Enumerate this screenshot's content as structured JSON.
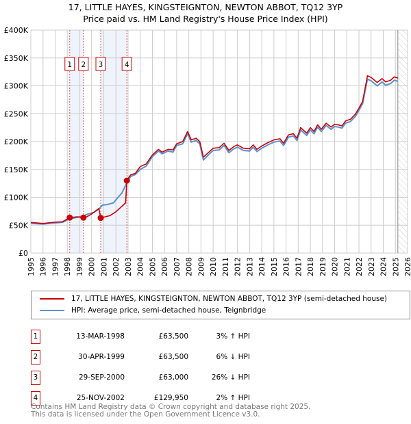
{
  "chart_data": {
    "type": "line",
    "title": "17, LITTLE HAYES, KINGSTEIGNTON, NEWTON ABBOT, TQ12 3YP",
    "subtitle": "Price paid vs. HM Land Registry's House Price Index (HPI)",
    "xlim": [
      1995,
      2026
    ],
    "ylim": [
      0,
      400000
    ],
    "x_ticks": [
      "1995",
      "1996",
      "1997",
      "1998",
      "1999",
      "2000",
      "2001",
      "2002",
      "2003",
      "2004",
      "2005",
      "2006",
      "2007",
      "2008",
      "2009",
      "2010",
      "2011",
      "2012",
      "2013",
      "2014",
      "2015",
      "2016",
      "2017",
      "2018",
      "2019",
      "2020",
      "2021",
      "2022",
      "2023",
      "2024",
      "2025",
      "2026"
    ],
    "y_ticks": [
      {
        "v": 0,
        "l": "£0"
      },
      {
        "v": 50000,
        "l": "£50K"
      },
      {
        "v": 100000,
        "l": "£100K"
      },
      {
        "v": 150000,
        "l": "£150K"
      },
      {
        "v": 200000,
        "l": "£200K"
      },
      {
        "v": 250000,
        "l": "£250K"
      },
      {
        "v": 300000,
        "l": "£300K"
      },
      {
        "v": 350000,
        "l": "£350K"
      },
      {
        "v": 400000,
        "l": "£400K"
      }
    ],
    "grid": true,
    "series": [
      {
        "name": "17, LITTLE HAYES, KINGSTEIGNTON, NEWTON ABBOT, TQ12 3YP (semi-detached house)",
        "color": "#cc0000",
        "points": [
          [
            1995,
            55000
          ],
          [
            1996,
            53000
          ],
          [
            1997,
            55500
          ],
          [
            1997.6,
            56000
          ],
          [
            1998.2,
            63500
          ],
          [
            1998.8,
            65000
          ],
          [
            1999.3,
            63500
          ],
          [
            1999.6,
            65000
          ],
          [
            2000,
            70000
          ],
          [
            2000.6,
            80000
          ],
          [
            2000.75,
            63000
          ],
          [
            2001.5,
            67000
          ],
          [
            2002,
            74000
          ],
          [
            2002.8,
            90000
          ],
          [
            2002.9,
            129950
          ],
          [
            2003.2,
            140000
          ],
          [
            2003.6,
            143000
          ],
          [
            2004,
            155000
          ],
          [
            2004.5,
            160000
          ],
          [
            2005,
            176000
          ],
          [
            2005.5,
            186000
          ],
          [
            2005.8,
            181000
          ],
          [
            2006.3,
            186000
          ],
          [
            2006.7,
            185000
          ],
          [
            2007,
            196000
          ],
          [
            2007.5,
            200000
          ],
          [
            2007.9,
            218000
          ],
          [
            2008.2,
            203000
          ],
          [
            2008.6,
            206000
          ],
          [
            2008.9,
            200000
          ],
          [
            2009.2,
            172000
          ],
          [
            2009.6,
            180000
          ],
          [
            2010,
            188000
          ],
          [
            2010.5,
            189000
          ],
          [
            2010.9,
            197000
          ],
          [
            2011.3,
            184000
          ],
          [
            2011.7,
            191000
          ],
          [
            2012,
            194000
          ],
          [
            2012.5,
            188000
          ],
          [
            2013,
            187000
          ],
          [
            2013.3,
            194000
          ],
          [
            2013.6,
            186000
          ],
          [
            2014,
            192000
          ],
          [
            2014.5,
            198000
          ],
          [
            2015,
            203000
          ],
          [
            2015.5,
            205000
          ],
          [
            2015.8,
            197000
          ],
          [
            2016.2,
            212000
          ],
          [
            2016.6,
            214000
          ],
          [
            2016.9,
            206000
          ],
          [
            2017.2,
            225000
          ],
          [
            2017.7,
            215000
          ],
          [
            2018,
            225000
          ],
          [
            2018.3,
            218000
          ],
          [
            2018.6,
            230000
          ],
          [
            2018.9,
            222000
          ],
          [
            2019.3,
            233000
          ],
          [
            2019.7,
            226000
          ],
          [
            2020,
            231000
          ],
          [
            2020.3,
            230000
          ],
          [
            2020.6,
            228000
          ],
          [
            2020.9,
            237000
          ],
          [
            2021.3,
            240000
          ],
          [
            2021.7,
            249000
          ],
          [
            2022,
            260000
          ],
          [
            2022.3,
            272000
          ],
          [
            2022.7,
            318000
          ],
          [
            2023,
            315000
          ],
          [
            2023.5,
            306000
          ],
          [
            2023.9,
            313000
          ],
          [
            2024.2,
            307000
          ],
          [
            2024.6,
            310000
          ],
          [
            2024.9,
            316000
          ],
          [
            2025.2,
            314000
          ]
        ]
      },
      {
        "name": "HPI: Average price, semi-detached house, Teignbridge",
        "color": "#5b8fd1",
        "points": [
          [
            1995,
            53000
          ],
          [
            1996,
            52000
          ],
          [
            1997,
            54000
          ],
          [
            1997.6,
            55000
          ],
          [
            1998.2,
            61500
          ],
          [
            1998.8,
            64000
          ],
          [
            1999.3,
            66500
          ],
          [
            1999.7,
            70000
          ],
          [
            2000.2,
            73000
          ],
          [
            2000.6,
            79000
          ],
          [
            2000.9,
            86000
          ],
          [
            2001.3,
            87000
          ],
          [
            2001.8,
            90000
          ],
          [
            2002.1,
            98000
          ],
          [
            2002.5,
            108000
          ],
          [
            2002.9,
            126000
          ],
          [
            2003.2,
            137000
          ],
          [
            2003.6,
            141000
          ],
          [
            2004,
            150000
          ],
          [
            2004.5,
            156000
          ],
          [
            2005,
            173000
          ],
          [
            2005.5,
            183000
          ],
          [
            2005.8,
            178000
          ],
          [
            2006.3,
            183000
          ],
          [
            2006.7,
            181000
          ],
          [
            2007,
            193000
          ],
          [
            2007.5,
            196000
          ],
          [
            2007.9,
            214000
          ],
          [
            2008.2,
            199000
          ],
          [
            2008.6,
            202000
          ],
          [
            2008.9,
            196000
          ],
          [
            2009.2,
            167000
          ],
          [
            2009.6,
            176000
          ],
          [
            2010,
            184000
          ],
          [
            2010.5,
            185000
          ],
          [
            2010.9,
            193000
          ],
          [
            2011.3,
            180000
          ],
          [
            2011.7,
            187000
          ],
          [
            2012,
            190000
          ],
          [
            2012.5,
            184000
          ],
          [
            2013,
            183000
          ],
          [
            2013.3,
            190000
          ],
          [
            2013.6,
            182000
          ],
          [
            2014,
            188000
          ],
          [
            2014.5,
            194000
          ],
          [
            2015,
            199000
          ],
          [
            2015.5,
            201000
          ],
          [
            2015.8,
            193000
          ],
          [
            2016.2,
            208000
          ],
          [
            2016.6,
            210000
          ],
          [
            2016.9,
            202000
          ],
          [
            2017.2,
            221000
          ],
          [
            2017.7,
            211000
          ],
          [
            2018,
            221000
          ],
          [
            2018.3,
            214000
          ],
          [
            2018.6,
            226000
          ],
          [
            2018.9,
            218000
          ],
          [
            2019.3,
            229000
          ],
          [
            2019.7,
            222000
          ],
          [
            2020,
            227000
          ],
          [
            2020.3,
            226000
          ],
          [
            2020.6,
            224000
          ],
          [
            2020.9,
            233000
          ],
          [
            2021.3,
            236000
          ],
          [
            2021.7,
            245000
          ],
          [
            2022,
            256000
          ],
          [
            2022.3,
            268000
          ],
          [
            2022.7,
            312000
          ],
          [
            2023,
            309000
          ],
          [
            2023.5,
            300000
          ],
          [
            2023.9,
            307000
          ],
          [
            2024.2,
            301000
          ],
          [
            2024.6,
            304000
          ],
          [
            2024.9,
            310000
          ],
          [
            2025.2,
            308000
          ]
        ]
      }
    ],
    "sales": [
      {
        "n": "1",
        "x": 1998.2,
        "price": 63500,
        "date": "13-MAR-1998",
        "price_label": "£63,500",
        "hpi": "3% ↑ HPI"
      },
      {
        "n": "2",
        "x": 1999.33,
        "price": 63500,
        "date": "30-APR-1999",
        "price_label": "£63,500",
        "hpi": "6% ↓ HPI"
      },
      {
        "n": "3",
        "x": 2000.75,
        "price": 63000,
        "date": "29-SEP-2000",
        "price_label": "£63,000",
        "hpi": "26% ↓ HPI"
      },
      {
        "n": "4",
        "x": 2002.9,
        "price": 129950,
        "date": "25-NOV-2002",
        "price_label": "£129,950",
        "hpi": "2% ↑ HPI"
      }
    ],
    "shaded_ranges": [
      [
        1998.2,
        1999.33
      ],
      [
        2000.75,
        2002.9
      ]
    ],
    "forecast_from": 2025.2,
    "legend_placement": "below"
  },
  "footer": [
    "Contains HM Land Registry data © Crown copyright and database right 2025.",
    "This data is licensed under the Open Government Licence v3.0."
  ]
}
